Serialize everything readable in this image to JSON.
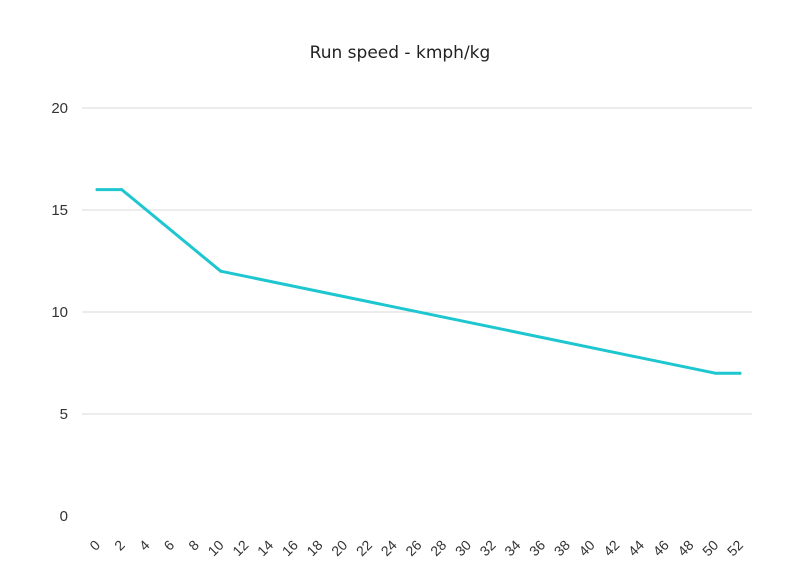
{
  "chart_data": {
    "type": "line",
    "title": "Run speed - kmph/kg",
    "xlabel": "",
    "ylabel": "",
    "x_ticks": [
      "0",
      "2",
      "4",
      "6",
      "8",
      "10",
      "12",
      "14",
      "16",
      "18",
      "20",
      "22",
      "24",
      "26",
      "28",
      "30",
      "32",
      "34",
      "36",
      "38",
      "40",
      "42",
      "44",
      "46",
      "48",
      "50",
      "52"
    ],
    "y_ticks": [
      "20",
      "15",
      "10",
      "5",
      "0"
    ],
    "ylim": [
      0,
      20
    ],
    "xlim": [
      0,
      52
    ],
    "grid": true,
    "legend": "none",
    "series": [
      {
        "color": "#1ec6cf",
        "points": [
          {
            "x": 0,
            "y": 16
          },
          {
            "x": 2,
            "y": 16
          },
          {
            "x": 10,
            "y": 12
          },
          {
            "x": 50,
            "y": 7
          },
          {
            "x": 52,
            "y": 7
          }
        ]
      }
    ]
  }
}
